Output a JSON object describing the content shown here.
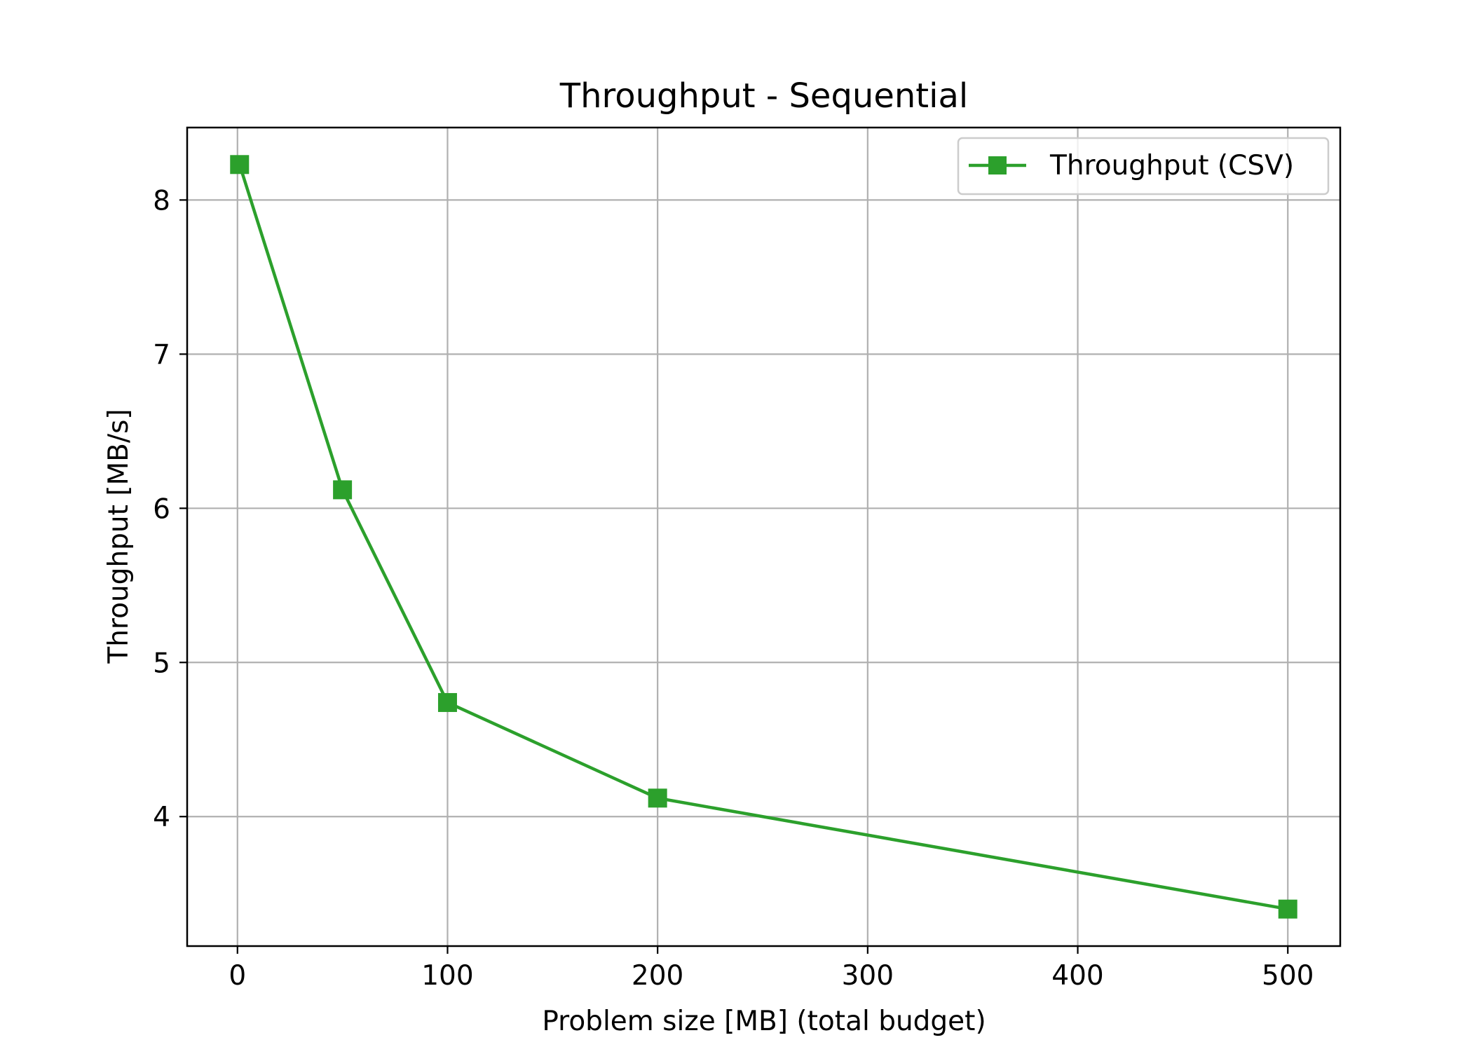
{
  "chart_data": {
    "type": "line",
    "title": "Throughput - Sequential",
    "xlabel": "Problem size [MB] (total budget)",
    "ylabel": "Throughput [MB/s]",
    "x": [
      1,
      50,
      100,
      200,
      500
    ],
    "series": [
      {
        "name": "Throughput (CSV)",
        "values": [
          8.23,
          6.12,
          4.74,
          4.12,
          3.4
        ],
        "color": "#2ca02c",
        "marker": "square"
      }
    ],
    "xlim": [
      -23.95,
      524.95
    ],
    "ylim": [
      3.16,
      8.47
    ],
    "xticks": [
      0,
      100,
      200,
      300,
      400,
      500
    ],
    "yticks": [
      4,
      5,
      6,
      7,
      8
    ],
    "grid": true,
    "legend_position": "top-right"
  }
}
